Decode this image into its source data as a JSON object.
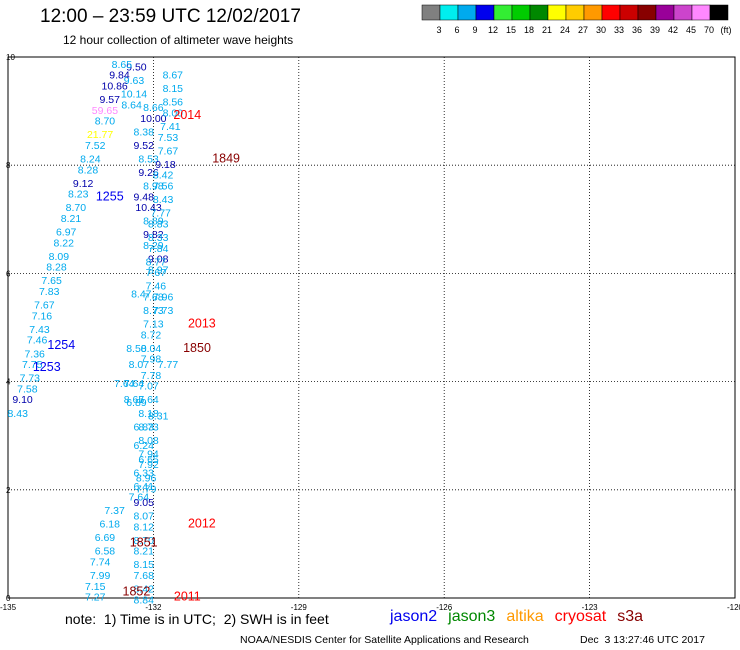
{
  "header": {
    "title": "12:00 – 23:59 UTC 12/02/2017",
    "subtitle": "12 hour collection of altimeter wave heights"
  },
  "color_scale": {
    "unit": "(ft)",
    "bins": [
      {
        "label": "3",
        "color": "#808080"
      },
      {
        "label": "6",
        "color": "#00eeee"
      },
      {
        "label": "9",
        "color": "#00aaee"
      },
      {
        "label": "12",
        "color": "#0000ee"
      },
      {
        "label": "15",
        "color": "#33ee33"
      },
      {
        "label": "18",
        "color": "#00cc00"
      },
      {
        "label": "21",
        "color": "#008800"
      },
      {
        "label": "24",
        "color": "#ffff00"
      },
      {
        "label": "27",
        "color": "#ffcc00"
      },
      {
        "label": "30",
        "color": "#ff9900"
      },
      {
        "label": "33",
        "color": "#ff0000"
      },
      {
        "label": "36",
        "color": "#cc0000"
      },
      {
        "label": "39",
        "color": "#880000"
      },
      {
        "label": "42",
        "color": "#990099"
      },
      {
        "label": "45",
        "color": "#cc44cc"
      },
      {
        "label": "70",
        "color": "#ff88ff"
      },
      {
        "label": "",
        "color": "#000000"
      }
    ]
  },
  "chart_data": {
    "type": "scatter",
    "xlim": [
      -135,
      -120
    ],
    "ylim": [
      0,
      10
    ],
    "x_ticks": [
      "-135",
      "-132",
      "-129",
      "-126",
      "-123",
      "-120"
    ],
    "y_ticks": [
      "0",
      "2",
      "4",
      "6",
      "8",
      "10"
    ],
    "grid": true,
    "points": [
      {
        "x": -132.0,
        "y": 9.0,
        "label": "8.66",
        "color": "#00aaee"
      },
      {
        "x": -132.0,
        "y": 8.8,
        "label": "10.00",
        "color": "#0000aa"
      },
      {
        "x": -132.2,
        "y": 8.55,
        "label": "8.38",
        "color": "#00aaee"
      },
      {
        "x": -132.2,
        "y": 8.3,
        "label": "9.52",
        "color": "#0000aa"
      },
      {
        "x": -132.1,
        "y": 8.05,
        "label": "8.53",
        "color": "#00aaee"
      },
      {
        "x": -132.1,
        "y": 7.8,
        "label": "9.26",
        "color": "#0000aa"
      },
      {
        "x": -132.0,
        "y": 7.55,
        "label": "8.98",
        "color": "#00aaee"
      },
      {
        "x": -132.2,
        "y": 7.35,
        "label": "9.48",
        "color": "#0000aa"
      },
      {
        "x": -132.1,
        "y": 7.15,
        "label": "10.43",
        "color": "#0000aa"
      },
      {
        "x": -132.0,
        "y": 6.9,
        "label": "8.89",
        "color": "#00aaee"
      },
      {
        "x": -132.0,
        "y": 6.65,
        "label": "9.82",
        "color": "#0000aa"
      },
      {
        "x": -132.0,
        "y": 6.45,
        "label": "8.29",
        "color": "#00aaee"
      },
      {
        "x": -131.9,
        "y": 6.2,
        "label": "9.08",
        "color": "#0000aa"
      },
      {
        "x": -131.9,
        "y": 6.0,
        "label": "8.97",
        "color": "#00aaee"
      },
      {
        "x": -131.8,
        "y": 5.5,
        "label": "7.96",
        "color": "#00aaee"
      },
      {
        "x": -131.8,
        "y": 5.25,
        "label": "7.73",
        "color": "#00aaee"
      },
      {
        "x": -131.7,
        "y": 4.25,
        "label": "7.77",
        "color": "#00aaee"
      },
      {
        "x": -131.9,
        "y": 3.3,
        "label": "8.31",
        "color": "#00aaee"
      },
      {
        "x": -132.2,
        "y": 2.75,
        "label": "6.24",
        "color": "#00aaee"
      },
      {
        "x": -132.1,
        "y": 2.5,
        "label": "6.65",
        "color": "#00aaee"
      },
      {
        "x": -132.2,
        "y": 2.25,
        "label": "6.33",
        "color": "#00aaee"
      },
      {
        "x": -132.2,
        "y": 2.0,
        "label": "6.41",
        "color": "#00aaee"
      },
      {
        "x": -132.3,
        "y": 1.8,
        "label": "7.64",
        "color": "#00aaee"
      },
      {
        "x": -132.8,
        "y": 1.55,
        "label": "7.37",
        "color": "#00aaee"
      },
      {
        "x": -132.9,
        "y": 1.3,
        "label": "6.18",
        "color": "#00aaee"
      },
      {
        "x": -133.0,
        "y": 1.05,
        "label": "6.69",
        "color": "#00aaee"
      },
      {
        "x": -133.0,
        "y": 0.8,
        "label": "6.58",
        "color": "#00aaee"
      },
      {
        "x": -133.1,
        "y": 0.6,
        "label": "7.74",
        "color": "#00aaee"
      },
      {
        "x": -133.1,
        "y": 0.35,
        "label": "7.99",
        "color": "#00aaee"
      },
      {
        "x": -133.2,
        "y": 0.15,
        "label": "7.15",
        "color": "#00aaee"
      },
      {
        "x": -133.2,
        "y": -0.05,
        "label": "7.27",
        "color": "#00aaee"
      },
      {
        "x": -132.3,
        "y": 4.25,
        "label": "8.07",
        "color": "#00aaee"
      },
      {
        "x": -132.6,
        "y": 3.9,
        "label": "7.64",
        "color": "#00aaee"
      },
      {
        "x": -132.4,
        "y": 3.6,
        "label": "8.65",
        "color": "#00aaee"
      },
      {
        "x": -131.6,
        "y": 9.6,
        "label": "8.67",
        "color": "#00aaee"
      },
      {
        "x": -131.6,
        "y": 9.35,
        "label": "8.15",
        "color": "#00aaee"
      },
      {
        "x": -131.6,
        "y": 9.1,
        "label": "8.56",
        "color": "#00aaee"
      },
      {
        "x": -131.6,
        "y": 8.9,
        "label": "8.00",
        "color": "#00aaee"
      },
      {
        "x": -131.65,
        "y": 8.65,
        "label": "7.41",
        "color": "#00aaee"
      },
      {
        "x": -131.7,
        "y": 8.45,
        "label": "7.53",
        "color": "#00aaee"
      },
      {
        "x": -131.7,
        "y": 8.2,
        "label": "7.67",
        "color": "#00aaee"
      },
      {
        "x": -131.75,
        "y": 7.95,
        "label": "9.18",
        "color": "#0000aa"
      },
      {
        "x": -131.8,
        "y": 7.75,
        "label": "8.42",
        "color": "#00aaee"
      },
      {
        "x": -131.8,
        "y": 7.55,
        "label": "7.56",
        "color": "#00aaee"
      },
      {
        "x": -131.8,
        "y": 7.3,
        "label": "8.43",
        "color": "#00aaee"
      },
      {
        "x": -131.85,
        "y": 7.05,
        "label": "7.77",
        "color": "#00aaee"
      },
      {
        "x": -131.9,
        "y": 6.85,
        "label": "8.83",
        "color": "#00aaee"
      },
      {
        "x": -131.9,
        "y": 6.6,
        "label": "8.33",
        "color": "#00aaee"
      },
      {
        "x": -131.9,
        "y": 6.4,
        "label": "7.84",
        "color": "#00aaee"
      },
      {
        "x": -131.95,
        "y": 6.15,
        "label": "8.77",
        "color": "#00aaee"
      },
      {
        "x": -131.95,
        "y": 5.95,
        "label": "7.67",
        "color": "#00aaee"
      },
      {
        "x": -131.95,
        "y": 5.7,
        "label": "7.46",
        "color": "#00aaee"
      },
      {
        "x": -132.0,
        "y": 5.5,
        "label": "7.68",
        "color": "#00aaee"
      },
      {
        "x": -132.0,
        "y": 5.25,
        "label": "8.73",
        "color": "#00aaee"
      },
      {
        "x": -132.0,
        "y": 5.0,
        "label": "7.13",
        "color": "#00aaee"
      },
      {
        "x": -132.05,
        "y": 4.8,
        "label": "8.72",
        "color": "#00aaee"
      },
      {
        "x": -132.05,
        "y": 4.55,
        "label": "8.04",
        "color": "#00aaee"
      },
      {
        "x": -132.05,
        "y": 4.35,
        "label": "7.98",
        "color": "#00aaee"
      },
      {
        "x": -132.05,
        "y": 4.05,
        "label": "7.78",
        "color": "#00aaee"
      },
      {
        "x": -132.1,
        "y": 3.85,
        "label": "7.07",
        "color": "#00aaee"
      },
      {
        "x": -132.1,
        "y": 3.6,
        "label": "7.64",
        "color": "#00aaee"
      },
      {
        "x": -132.1,
        "y": 3.35,
        "label": "8.18",
        "color": "#00aaee"
      },
      {
        "x": -132.1,
        "y": 3.1,
        "label": "8.73",
        "color": "#00aaee"
      },
      {
        "x": -132.1,
        "y": 2.85,
        "label": "8.08",
        "color": "#00aaee"
      },
      {
        "x": -132.1,
        "y": 2.6,
        "label": "7.94",
        "color": "#00aaee"
      },
      {
        "x": -132.1,
        "y": 2.4,
        "label": "7.92",
        "color": "#00aaee"
      },
      {
        "x": -132.15,
        "y": 2.15,
        "label": "8.96",
        "color": "#00aaee"
      },
      {
        "x": -132.15,
        "y": 1.95,
        "label": "7.79",
        "color": "#00aaee"
      },
      {
        "x": -132.2,
        "y": 1.7,
        "label": "9.05",
        "color": "#0000aa"
      },
      {
        "x": -132.2,
        "y": 1.45,
        "label": "8.07",
        "color": "#00aaee"
      },
      {
        "x": -132.2,
        "y": 1.25,
        "label": "8.12",
        "color": "#00aaee"
      },
      {
        "x": -132.2,
        "y": 1.0,
        "label": "8.70",
        "color": "#00aaee"
      },
      {
        "x": -132.2,
        "y": 0.8,
        "label": "8.21",
        "color": "#00aaee"
      },
      {
        "x": -132.2,
        "y": 0.55,
        "label": "8.15",
        "color": "#00aaee"
      },
      {
        "x": -132.2,
        "y": 0.35,
        "label": "7.68",
        "color": "#00aaee"
      },
      {
        "x": -132.2,
        "y": 0.1,
        "label": "8.42",
        "color": "#00aaee"
      },
      {
        "x": -132.2,
        "y": -0.1,
        "label": "8.84",
        "color": "#00aaee"
      },
      {
        "x": -132.2,
        "y": -0.35,
        "label": "8.17",
        "color": "#00aaee"
      },
      {
        "x": -132.35,
        "y": 9.75,
        "label": "9.50",
        "color": "#0000aa"
      },
      {
        "x": -132.4,
        "y": 9.5,
        "label": "9.63",
        "color": "#00aaee"
      },
      {
        "x": -132.4,
        "y": 9.25,
        "label": "10.14",
        "color": "#00aaee"
      },
      {
        "x": -132.45,
        "y": 9.05,
        "label": "8.64",
        "color": "#00aaee"
      },
      {
        "x": -132.65,
        "y": 9.8,
        "label": "8.65",
        "color": "#00aaee"
      },
      {
        "x": -132.7,
        "y": 9.6,
        "label": "9.84",
        "color": "#0000aa"
      },
      {
        "x": -132.8,
        "y": 9.4,
        "label": "10.86",
        "color": "#0000aa"
      },
      {
        "x": -132.9,
        "y": 9.15,
        "label": "9.57",
        "color": "#0000aa"
      },
      {
        "x": -133.0,
        "y": 8.95,
        "label": "59.65",
        "color": "#ff88ff"
      },
      {
        "x": -133.0,
        "y": 8.75,
        "label": "8.70",
        "color": "#00aaee"
      },
      {
        "x": -133.1,
        "y": 8.5,
        "label": "21.77",
        "color": "#ffff00"
      },
      {
        "x": -133.2,
        "y": 8.3,
        "label": "7.52",
        "color": "#00aaee"
      },
      {
        "x": -133.3,
        "y": 8.05,
        "label": "8.24",
        "color": "#00aaee"
      },
      {
        "x": -133.35,
        "y": 7.85,
        "label": "8.28",
        "color": "#00aaee"
      },
      {
        "x": -133.45,
        "y": 7.6,
        "label": "9.12",
        "color": "#0000aa"
      },
      {
        "x": -133.55,
        "y": 7.4,
        "label": "8.23",
        "color": "#00aaee"
      },
      {
        "x": -133.6,
        "y": 7.15,
        "label": "8.70",
        "color": "#00aaee"
      },
      {
        "x": -133.7,
        "y": 6.95,
        "label": "8.21",
        "color": "#00aaee"
      },
      {
        "x": -133.8,
        "y": 6.7,
        "label": "6.97",
        "color": "#00aaee"
      },
      {
        "x": -133.85,
        "y": 6.5,
        "label": "8.22",
        "color": "#00aaee"
      },
      {
        "x": -133.95,
        "y": 6.25,
        "label": "8.09",
        "color": "#00aaee"
      },
      {
        "x": -134.0,
        "y": 6.05,
        "label": "8.28",
        "color": "#00aaee"
      },
      {
        "x": -134.1,
        "y": 5.8,
        "label": "7.65",
        "color": "#00aaee"
      },
      {
        "x": -134.15,
        "y": 5.6,
        "label": "7.83",
        "color": "#00aaee"
      },
      {
        "x": -134.25,
        "y": 5.35,
        "label": "7.67",
        "color": "#00aaee"
      },
      {
        "x": -134.3,
        "y": 5.15,
        "label": "7.16",
        "color": "#00aaee"
      },
      {
        "x": -134.35,
        "y": 4.9,
        "label": "7.43",
        "color": "#00aaee"
      },
      {
        "x": -134.4,
        "y": 4.7,
        "label": "7.46",
        "color": "#00aaee"
      },
      {
        "x": -134.45,
        "y": 4.45,
        "label": "7.36",
        "color": "#00aaee"
      },
      {
        "x": -134.5,
        "y": 4.25,
        "label": "7.75",
        "color": "#00aaee"
      },
      {
        "x": -134.55,
        "y": 4.0,
        "label": "7.73",
        "color": "#00aaee"
      },
      {
        "x": -134.6,
        "y": 3.8,
        "label": "7.58",
        "color": "#00aaee"
      },
      {
        "x": -134.7,
        "y": 3.6,
        "label": "9.10",
        "color": "#0000aa"
      },
      {
        "x": -134.8,
        "y": 3.35,
        "label": "8.43",
        "color": "#00aaee"
      },
      {
        "x": -132.25,
        "y": 5.55,
        "label": "8.47",
        "color": "#00aaee"
      },
      {
        "x": -132.35,
        "y": 4.55,
        "label": "8.50",
        "color": "#00aaee"
      },
      {
        "x": -132.4,
        "y": 3.9,
        "label": "7.64",
        "color": "#00aaee"
      },
      {
        "x": -132.35,
        "y": 3.55,
        "label": "6.89",
        "color": "#00aaee"
      },
      {
        "x": -132.2,
        "y": 3.1,
        "label": "6.83",
        "color": "#00aaee"
      }
    ],
    "track_labels": [
      {
        "x": -131.3,
        "y": 8.85,
        "label": "2014",
        "color": "#ff0000"
      },
      {
        "x": -130.5,
        "y": 8.05,
        "label": "1849",
        "color": "#880000"
      },
      {
        "x": -132.9,
        "y": 7.35,
        "label": "1255",
        "color": "#0000ee"
      },
      {
        "x": -131.0,
        "y": 5.0,
        "label": "2013",
        "color": "#ff0000"
      },
      {
        "x": -131.1,
        "y": 4.55,
        "label": "1850",
        "color": "#880000"
      },
      {
        "x": -133.9,
        "y": 4.6,
        "label": "1254",
        "color": "#0000ee"
      },
      {
        "x": -134.2,
        "y": 4.2,
        "label": "1253",
        "color": "#0000ee"
      },
      {
        "x": -131.0,
        "y": 1.3,
        "label": "2012",
        "color": "#ff0000"
      },
      {
        "x": -132.2,
        "y": 0.95,
        "label": "1851",
        "color": "#880000"
      },
      {
        "x": -131.3,
        "y": -0.05,
        "label": "2011",
        "color": "#ff0000"
      },
      {
        "x": -132.35,
        "y": 0.05,
        "label": "1852",
        "color": "#880000"
      }
    ]
  },
  "footer": {
    "note": "note:  1) Time is in UTC;  2) SWH is in feet",
    "satellites": [
      {
        "name": "jason2",
        "color": "#0000ee"
      },
      {
        "name": "jason3",
        "color": "#008800"
      },
      {
        "name": "altika",
        "color": "#ff9900"
      },
      {
        "name": "cryosat",
        "color": "#ff0000"
      },
      {
        "name": "s3a",
        "color": "#880000"
      }
    ],
    "credit": "NOAA/NESDIS Center for Satellite Applications and Research",
    "timestamp": "Dec  3 13:27:46 UTC 2017"
  }
}
